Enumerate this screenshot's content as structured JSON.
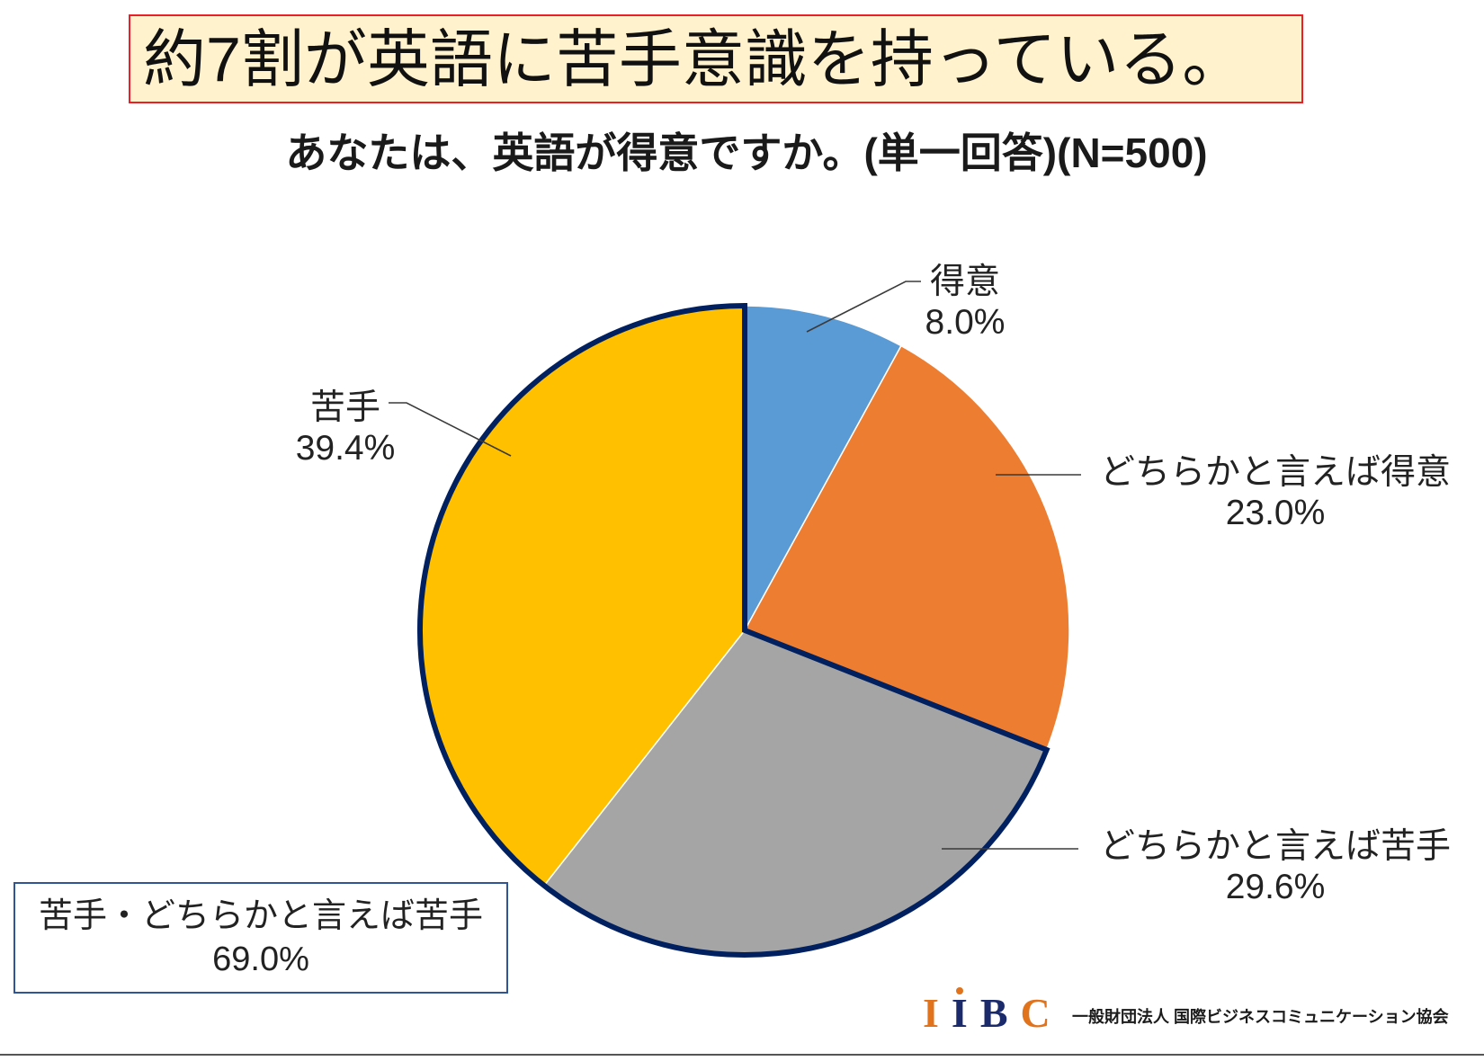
{
  "slide": {
    "headline": "約7割が英語に苦手意識を持っている。"
  },
  "chart_data": {
    "type": "pie",
    "title": "あなたは、英語が得意ですか。(単一回答)(N=500)",
    "start": "top",
    "direction": "clockwise",
    "slices": [
      {
        "label": "得意",
        "value": 8.0,
        "value_label": "8.0%",
        "color": "#5B9BD5"
      },
      {
        "label": "どちらかと言えば得意",
        "value": 23.0,
        "value_label": "23.0%",
        "color": "#ED7D31"
      },
      {
        "label": "どちらかと言えば苦手",
        "value": 29.6,
        "value_label": "29.6%",
        "color": "#A5A5A5"
      },
      {
        "label": "苦手",
        "value": 39.4,
        "value_label": "39.4%",
        "color": "#FFC000"
      }
    ],
    "group": {
      "label": "苦手・どちらかと言えば苦手",
      "value": 69.0,
      "value_label": "69.0%",
      "slices": [
        2,
        3
      ],
      "outline_color": "#002060"
    }
  },
  "logo": {
    "letters": [
      "I",
      "I",
      "B",
      "C"
    ],
    "org_name": "一般財団法人 国際ビジネスコミュニケーション協会"
  },
  "colors": {
    "headline_background": "#FFF2CC",
    "headline_border": "#E8202A",
    "group_box_border": "#2F5597",
    "logo_orange": "#E0731C",
    "logo_navy": "#1B2A6B"
  }
}
